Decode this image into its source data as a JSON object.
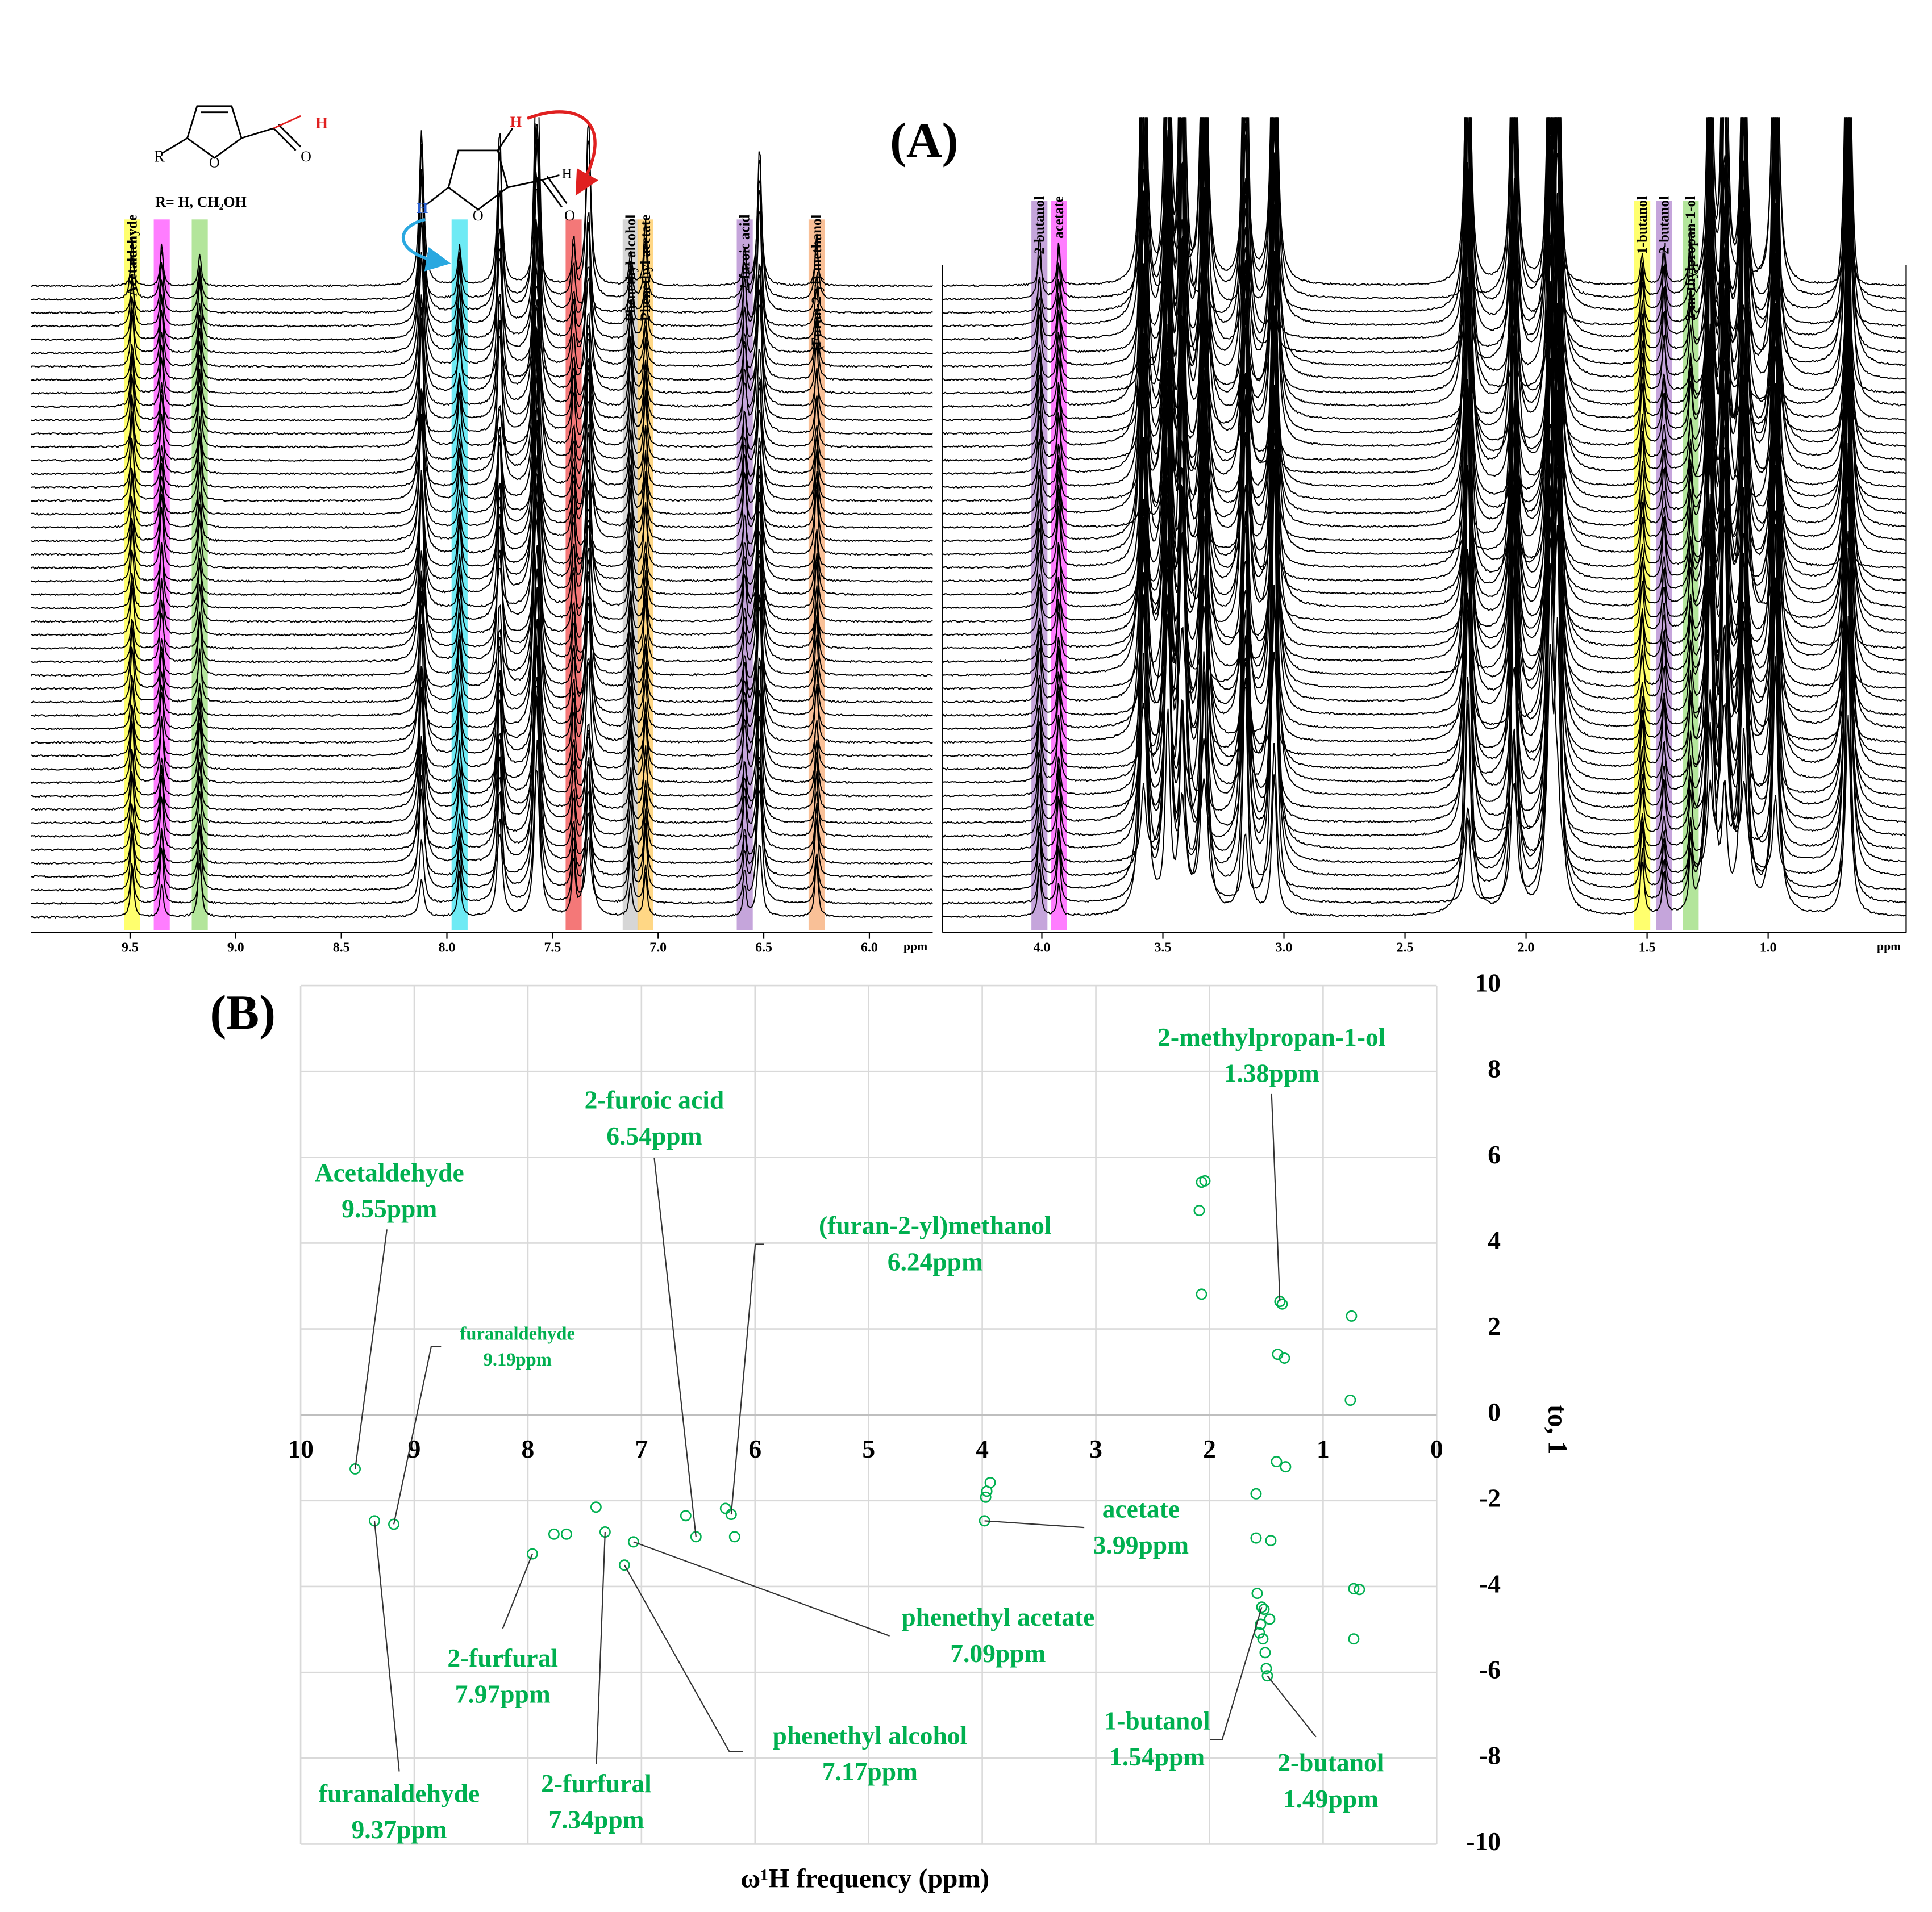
{
  "panel_labels": [
    "(A)",
    "(B)"
  ],
  "structure_1": {
    "substituent": "R",
    "ring_o": "O",
    "carbonyl_o": "O",
    "aldehyde_h": "H",
    "note": "R= H, CH₂OH"
  },
  "structure_2": {
    "ring_h": "H",
    "ring_h_3": "H",
    "ring_o": "O",
    "carbonyl_o": "O",
    "aldehyde_h": "H"
  },
  "chart_data": [
    {
      "type": "spectrum",
      "unit": "ppm",
      "xlim": [
        9.97,
        5.7
      ],
      "xticks": [
        9.5,
        {
          "value": 9,
          "label": "9.0"
        },
        8.5,
        {
          "value": 8,
          "label": "8.0"
        },
        7.5,
        {
          "value": 7,
          "label": "7.0"
        },
        6.5,
        {
          "value": 6,
          "label": "6.0"
        }
      ],
      "bands": [
        {
          "label": "Acetaldehyde",
          "ppm": 9.49,
          "color": "#ffff55"
        },
        {
          "ppm": 9.35,
          "color": "#ff66ff"
        },
        {
          "ppm": 9.17,
          "color": "#a6e08a"
        },
        {
          "ppm": 7.94,
          "color": "#55e6f2"
        },
        {
          "ppm": 7.4,
          "color": "#f26060"
        },
        {
          "label": "Phenethyl alcohol",
          "ppm": 7.13,
          "color": "#cfcfcf"
        },
        {
          "label": "Phenethyl acetate",
          "ppm": 7.06,
          "color": "#ffd070"
        },
        {
          "label": "2-furoic acid",
          "ppm": 6.59,
          "color": "#bb95d5"
        },
        {
          "label": "(Furan-2-yl)-methanol",
          "ppm": 6.25,
          "color": "#f8b585"
        }
      ],
      "other_peaks": [
        7.75,
        7.58,
        7.57,
        7.33,
        6.52,
        8.12
      ]
    },
    {
      "type": "spectrum",
      "unit": "ppm",
      "xlim": [
        4.41,
        0.43
      ],
      "xticks": [
        {
          "value": 4,
          "label": "4.0"
        },
        3.5,
        {
          "value": 3,
          "label": "3.0"
        },
        2.5,
        {
          "value": 2,
          "label": "2.0"
        },
        1.5,
        {
          "value": 1,
          "label": "1.0"
        }
      ],
      "bands": [
        {
          "label": "2-butanol",
          "ppm": 4.01,
          "color": "#bb95d5"
        },
        {
          "label": "acetate",
          "ppm": 3.93,
          "color": "#ff66ff"
        },
        {
          "label": "1-butanol",
          "ppm": 1.52,
          "color": "#ffff55"
        },
        {
          "label": "2-butanol",
          "ppm": 1.43,
          "color": "#bb95d5"
        },
        {
          "label": "2-methylpropan-1-ol",
          "ppm": 1.32,
          "color": "#a6e08a"
        }
      ],
      "other_peaks": [
        3.58,
        3.48,
        3.42,
        3.33,
        3.16,
        3.04,
        2.24,
        2.05,
        1.9,
        1.87,
        1.24,
        1.18,
        1.1,
        0.97,
        0.67
      ]
    },
    {
      "type": "scatter",
      "x_label": "ω¹H frequency (ppm)",
      "y_label": "to, 1",
      "xlim": [
        10,
        0
      ],
      "ylim": [
        -10,
        10
      ],
      "xticks": [
        10,
        9,
        8,
        7,
        6,
        5,
        4,
        3,
        2,
        1,
        0
      ],
      "yticks": [
        -10,
        -8,
        -6,
        -4,
        -2,
        0,
        2,
        4,
        6,
        8,
        10
      ],
      "grid": true,
      "color": "#00b050",
      "x": [
        9.52,
        9.35,
        9.18,
        7.96,
        7.77,
        7.66,
        7.4,
        7.32,
        7.15,
        7.07,
        6.61,
        6.52,
        6.26,
        6.21,
        6.18,
        3.93,
        3.96,
        3.97,
        3.98,
        2.07,
        2.04,
        2.09,
        2.07,
        1.38,
        1.36,
        0.75,
        1.4,
        1.34,
        0.76,
        1.41,
        1.33,
        1.59,
        1.59,
        1.46,
        1.58,
        1.54,
        1.52,
        1.47,
        1.55,
        1.56,
        1.53,
        1.51,
        1.5,
        1.49,
        0.73,
        0.68,
        0.73
      ],
      "y": [
        -1.26,
        -2.47,
        -2.55,
        -3.24,
        -2.78,
        -2.78,
        -2.15,
        -2.73,
        -3.5,
        -2.96,
        -2.35,
        -2.84,
        -2.18,
        -2.32,
        -2.84,
        -1.58,
        -1.78,
        -1.92,
        -2.47,
        5.42,
        5.45,
        4.76,
        2.81,
        2.64,
        2.58,
        2.3,
        1.41,
        1.32,
        0.34,
        -1.09,
        -1.21,
        -1.84,
        -2.87,
        -2.93,
        -4.16,
        -4.48,
        -4.53,
        -4.76,
        -4.88,
        -5.08,
        -5.22,
        -5.54,
        -5.91,
        -6.08,
        -4.05,
        -4.07,
        -5.22
      ],
      "annotations": [
        {
          "lines": [
            "Acetaldehyde",
            "9.55ppm"
          ]
        },
        {
          "lines": [
            "furanaldehyde",
            "9.19ppm"
          ]
        },
        {
          "lines": [
            "2-furoic acid",
            "6.54ppm"
          ]
        },
        {
          "lines": [
            "(furan-2-yl)methanol",
            "6.24ppm"
          ]
        },
        {
          "lines": [
            "2-methylpropan-1-ol",
            "1.38ppm"
          ]
        },
        {
          "lines": [
            "acetate",
            "3.99ppm"
          ]
        },
        {
          "lines": [
            "phenethyl acetate",
            "7.09ppm"
          ]
        },
        {
          "lines": [
            "2-furfural",
            "7.97ppm"
          ]
        },
        {
          "lines": [
            "phenethyl alcohol",
            "7.17ppm"
          ]
        },
        {
          "lines": [
            "2-furfural",
            "7.34ppm"
          ]
        },
        {
          "lines": [
            "furanaldehyde",
            "9.37ppm"
          ]
        },
        {
          "lines": [
            "1-butanol",
            "1.54ppm"
          ]
        },
        {
          "lines": [
            "2-butanol",
            "1.49ppm"
          ]
        }
      ]
    }
  ]
}
